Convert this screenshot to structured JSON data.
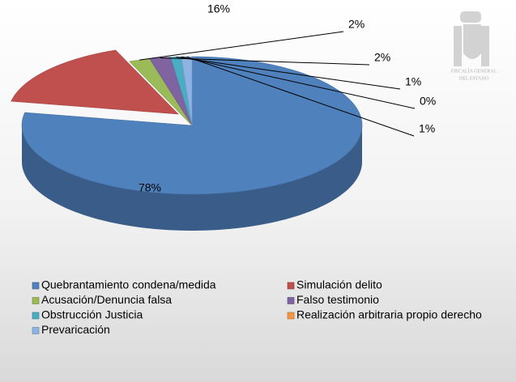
{
  "chart_data": {
    "type": "pie",
    "categories": [
      "Quebrantamiento condena/medida",
      "Simulación delito",
      "Acusación/Denuncia falsa",
      "Falso testimonio",
      "Obstrucción Justicia",
      "Realización arbitraria propio derecho",
      "Prevaricación"
    ],
    "values": [
      78,
      16,
      2,
      2,
      1,
      0,
      1
    ],
    "value_labels": [
      "78%",
      "16%",
      "2%",
      "2%",
      "1%",
      "0%",
      "1%"
    ],
    "colors": [
      "#4f81bd",
      "#c0504d",
      "#9bbb59",
      "#8064a2",
      "#4bacc6",
      "#f79646",
      "#8db3e2"
    ],
    "exploded": [
      1
    ]
  },
  "logo": {
    "lines": [
      "FISCALÍA GENERAL",
      "DEL ESTADO"
    ]
  }
}
